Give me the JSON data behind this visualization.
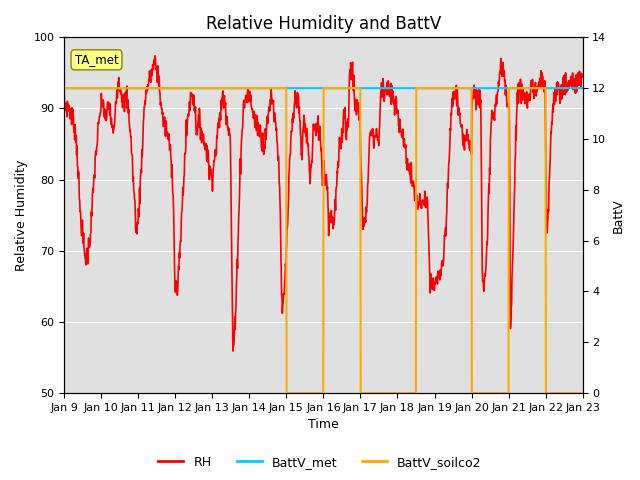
{
  "title": "Relative Humidity and BattV",
  "xlabel": "Time",
  "ylabel_left": "Relative Humidity",
  "ylabel_right": "BattV",
  "ylim_left": [
    50,
    100
  ],
  "ylim_right": [
    0,
    14
  ],
  "annotation_text": "TA_met",
  "bg_color": "#e0e0e0",
  "fig_color": "#ffffff",
  "x_tick_labels": [
    "Jan 9",
    "Jan 10",
    "Jan 11",
    "Jan 12",
    "Jan 13",
    "Jan 14",
    "Jan 15",
    "Jan 16",
    "Jan 17",
    "Jan 18",
    "Jan 19",
    "Jan 20",
    "Jan 21",
    "Jan 22",
    "Jan 23"
  ],
  "rh_color": "#ff0000",
  "battv_met_color": "#00ccff",
  "battv_soilco2_color": "#ffaa00",
  "legend_labels": [
    "RH",
    "BattV_met",
    "BattV_soilco2"
  ],
  "title_fontsize": 12,
  "axis_label_fontsize": 9,
  "tick_fontsize": 8,
  "legend_fontsize": 9,
  "rh_linewidth": 1.2,
  "battv_linewidth": 1.5
}
